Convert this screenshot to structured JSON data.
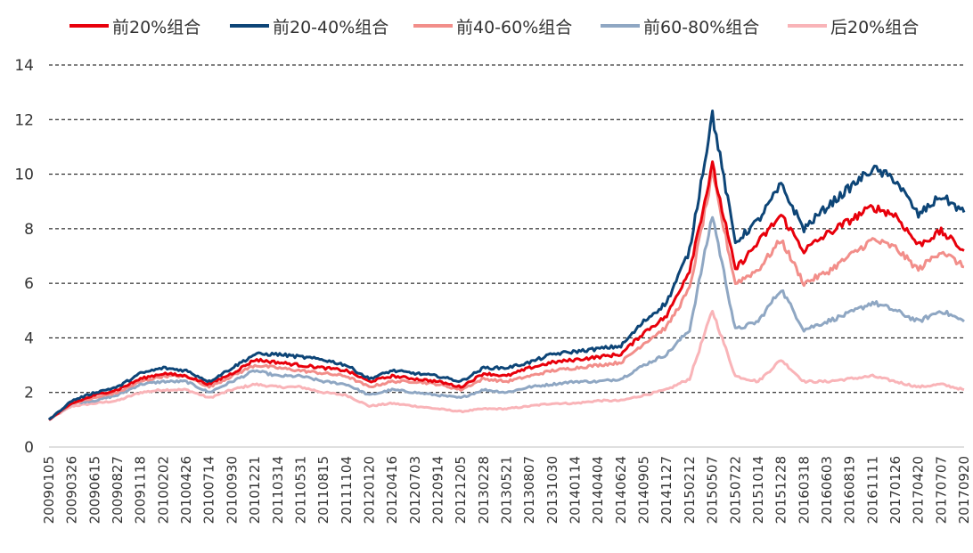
{
  "chart_data": {
    "type": "line",
    "title": "",
    "xlabel": "",
    "ylabel": "",
    "ylim": [
      0,
      14
    ],
    "yticks": [
      0,
      2,
      4,
      6,
      8,
      10,
      12,
      14
    ],
    "grid": "horizontal dashed",
    "legend_position": "top",
    "x": [
      "20090105",
      "20090326",
      "20090615",
      "20090827",
      "20091118",
      "20100202",
      "20100426",
      "20100714",
      "20100930",
      "20101221",
      "20110314",
      "20110531",
      "20110815",
      "20111104",
      "20120120",
      "20120416",
      "20120703",
      "20120914",
      "20121205",
      "20130228",
      "20130521",
      "20130807",
      "20131030",
      "20140114",
      "20140404",
      "20140624",
      "20140905",
      "20141127",
      "20150212",
      "20150507",
      "20150722",
      "20151014",
      "20151228",
      "20160318",
      "20160603",
      "20160819",
      "20161111",
      "20170126",
      "20170420",
      "20170707",
      "20170920"
    ],
    "series": [
      {
        "name": "前20%组合",
        "color": "#e8000b",
        "values": [
          1.0,
          1.6,
          1.9,
          2.1,
          2.5,
          2.7,
          2.6,
          2.3,
          2.7,
          3.2,
          3.1,
          3.0,
          2.9,
          2.8,
          2.4,
          2.6,
          2.5,
          2.4,
          2.2,
          2.7,
          2.6,
          2.9,
          3.1,
          3.2,
          3.3,
          3.4,
          4.2,
          4.8,
          6.5,
          10.3,
          6.5,
          7.5,
          8.5,
          7.2,
          7.8,
          8.3,
          8.8,
          8.5,
          7.4,
          7.9,
          7.2
        ]
      },
      {
        "name": "前20-40%组合",
        "color": "#0d4577",
        "values": [
          1.0,
          1.7,
          2.0,
          2.2,
          2.7,
          2.9,
          2.8,
          2.4,
          2.9,
          3.4,
          3.4,
          3.3,
          3.2,
          3.0,
          2.5,
          2.8,
          2.7,
          2.6,
          2.4,
          2.9,
          2.9,
          3.1,
          3.4,
          3.5,
          3.6,
          3.7,
          4.6,
          5.3,
          7.2,
          12.2,
          7.5,
          8.3,
          9.6,
          8.0,
          8.8,
          9.5,
          10.2,
          9.8,
          8.5,
          9.2,
          8.6
        ]
      },
      {
        "name": "前40-60%组合",
        "color": "#f28e8a",
        "values": [
          1.0,
          1.6,
          1.8,
          2.0,
          2.4,
          2.6,
          2.6,
          2.2,
          2.6,
          3.0,
          2.9,
          2.8,
          2.7,
          2.6,
          2.2,
          2.4,
          2.4,
          2.3,
          2.1,
          2.5,
          2.4,
          2.6,
          2.8,
          2.9,
          3.0,
          3.1,
          3.8,
          4.4,
          5.8,
          10.0,
          6.0,
          6.5,
          7.6,
          6.0,
          6.4,
          7.0,
          7.6,
          7.3,
          6.5,
          7.2,
          6.6
        ]
      },
      {
        "name": "前60-80%组合",
        "color": "#8fa7c3",
        "values": [
          1.0,
          1.6,
          1.7,
          1.9,
          2.3,
          2.4,
          2.4,
          2.0,
          2.4,
          2.8,
          2.6,
          2.6,
          2.4,
          2.3,
          1.9,
          2.1,
          2.0,
          1.9,
          1.8,
          2.1,
          2.0,
          2.2,
          2.3,
          2.4,
          2.4,
          2.5,
          3.0,
          3.4,
          4.3,
          8.5,
          4.3,
          4.6,
          5.8,
          4.3,
          4.6,
          4.9,
          5.3,
          5.0,
          4.6,
          5.0,
          4.6
        ]
      },
      {
        "name": "后20%组合",
        "color": "#f9b4b8",
        "values": [
          1.0,
          1.5,
          1.6,
          1.7,
          2.0,
          2.1,
          2.1,
          1.8,
          2.1,
          2.3,
          2.2,
          2.2,
          2.0,
          1.9,
          1.5,
          1.6,
          1.5,
          1.4,
          1.3,
          1.4,
          1.4,
          1.5,
          1.6,
          1.6,
          1.7,
          1.7,
          1.9,
          2.1,
          2.5,
          5.0,
          2.6,
          2.4,
          3.2,
          2.4,
          2.4,
          2.5,
          2.6,
          2.4,
          2.2,
          2.3,
          2.1
        ]
      }
    ]
  }
}
